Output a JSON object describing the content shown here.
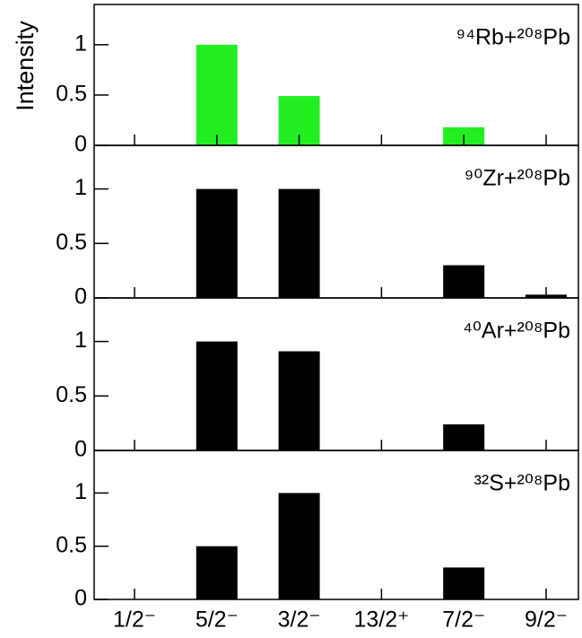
{
  "chart_data": [
    {
      "type": "bar",
      "title": "⁹⁴Rb+²⁰⁸Pb",
      "y_label": "Intensity",
      "color": "#22ee22",
      "values": [
        0,
        1,
        0.49,
        0,
        0.18,
        0
      ],
      "ylim": [
        0,
        1.4
      ],
      "yticks": [
        0,
        0.5,
        1
      ]
    },
    {
      "type": "bar",
      "title": "⁹⁰Zr+²⁰⁸Pb",
      "color": "#000000",
      "values": [
        0,
        1,
        1,
        0,
        0.3,
        0.03
      ],
      "ylim": [
        0,
        1.4
      ],
      "yticks": [
        0,
        0.5,
        1
      ]
    },
    {
      "type": "bar",
      "title": "⁴⁰Ar+²⁰⁸Pb",
      "color": "#000000",
      "values": [
        0,
        1,
        0.91,
        0,
        0.24,
        0
      ],
      "ylim": [
        0,
        1.4
      ],
      "yticks": [
        0,
        0.5,
        1
      ]
    },
    {
      "type": "bar",
      "title": "³²S+²⁰⁸Pb",
      "color": "#000000",
      "categories": [
        "1/2⁻",
        "5/2⁻",
        "3/2⁻",
        "13/2⁺",
        "7/2⁻",
        "9/2⁻"
      ],
      "values": [
        0,
        0.5,
        1,
        0,
        0.3,
        0
      ],
      "ylim": [
        0,
        1.4
      ],
      "yticks": [
        0,
        0.5,
        1
      ]
    }
  ]
}
